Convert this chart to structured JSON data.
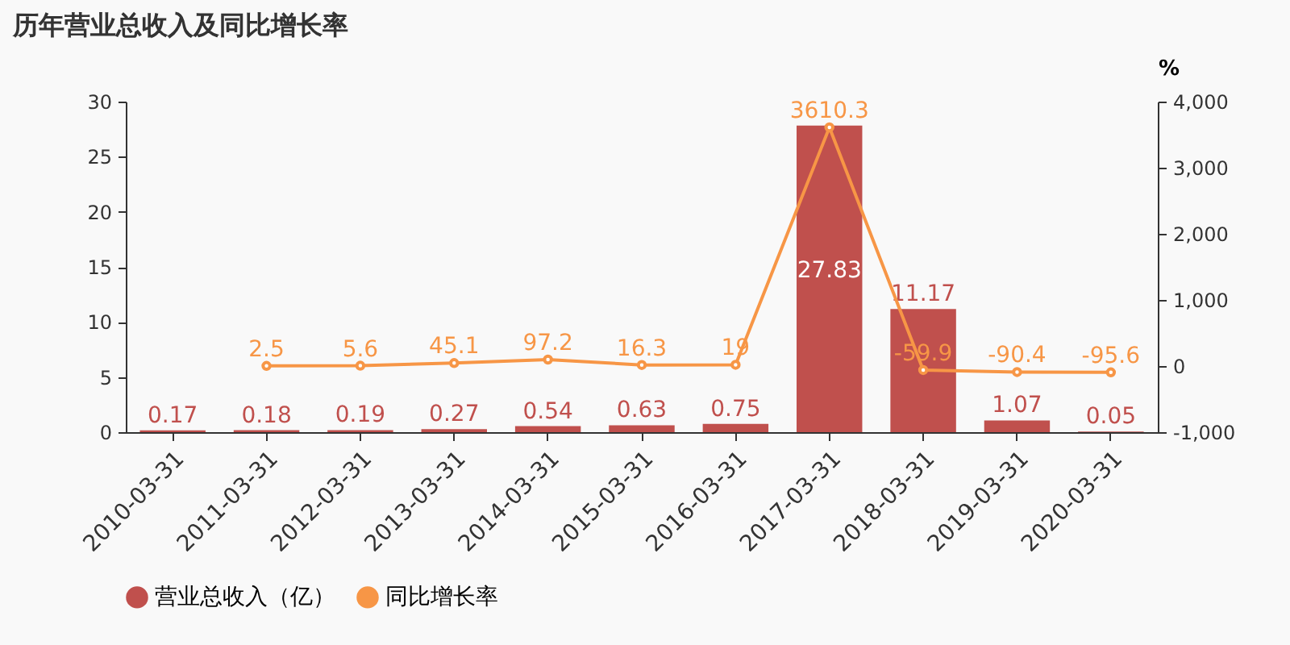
{
  "chart_data": {
    "type": "bar",
    "title": "历年营业总收入及同比增长率",
    "y2label": "%",
    "categories": [
      "2010-03-31",
      "2011-03-31",
      "2012-03-31",
      "2013-03-31",
      "2014-03-31",
      "2015-03-31",
      "2016-03-31",
      "2017-03-31",
      "2018-03-31",
      "2019-03-31",
      "2020-03-31"
    ],
    "series": [
      {
        "name": "营业总收入（亿）",
        "color": "#c0504d",
        "values": [
          0.17,
          0.18,
          0.19,
          0.27,
          0.54,
          0.63,
          0.75,
          27.83,
          11.17,
          1.07,
          0.05
        ]
      },
      {
        "name": "同比增长率",
        "type": "line",
        "axis": "y2",
        "color": "#f79646",
        "marker": "circle",
        "values": [
          null,
          2.5,
          5.6,
          45.1,
          97.2,
          16.3,
          19,
          3610.3,
          -59.9,
          -90.4,
          -95.6
        ]
      }
    ],
    "ylim": [
      0,
      30
    ],
    "yticks": [
      0,
      5,
      10,
      15,
      20,
      25,
      30
    ],
    "y2lim": [
      -1000,
      4000
    ],
    "y2ticks": [
      {
        "value": -1000,
        "label": "-1,000"
      },
      0,
      {
        "value": 1000,
        "label": "1,000"
      },
      {
        "value": 2000,
        "label": "2,000"
      },
      {
        "value": 3000,
        "label": "3,000"
      },
      {
        "value": 4000,
        "label": "4,000"
      }
    ],
    "data_labels": true,
    "legend": "bottom",
    "grid": false
  }
}
